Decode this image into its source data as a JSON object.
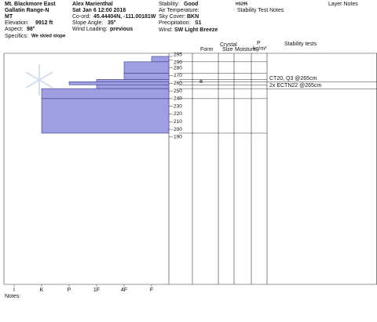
{
  "header": {
    "location": "Mt. Blackmore East",
    "range": "Gallatin Range-N",
    "state": "MT",
    "elevation_label": "Elevation:",
    "elevation": "9912 ft",
    "aspect_label": "Aspect:",
    "aspect": "98°",
    "specifics_label": "Specifics:",
    "specifics": "We skied slope",
    "observer": "Alex Marienthal",
    "datetime": "Sat Jan 6 12:00 2018",
    "coord_label": "Co-ord:",
    "coord": "45.44404N, -111.00181W",
    "slope_label": "Slope Angle:",
    "slope": "35°",
    "wind_loading_label": "Wind Loading:",
    "wind_loading": "previous",
    "stability_label": "Stability:",
    "stability": "Good",
    "air_temp_label": "Air Temperature:",
    "sky_label": "Sky Cover:",
    "sky": "BKN",
    "precip_label": "Precipitation:",
    "precip": "S1",
    "wind_label": "Wind:",
    "wind": "SW Light Breeze",
    "hs": "HS295",
    "test_notes_title": "Stability Test Notes",
    "layer_notes_title": "Layer Notes"
  },
  "columns": {
    "form": "Form",
    "crystal": "Crystal",
    "size": "Size",
    "moisture": "Moisture",
    "density_p": "P",
    "density_unit": "kg/m³",
    "stability_tests": "Stability tests"
  },
  "profile": {
    "ylim": [
      0,
      295
    ],
    "height_ticks": [
      295,
      290,
      280,
      270,
      260,
      250,
      240,
      230,
      220,
      210,
      200,
      190
    ],
    "hardness_labels": [
      "I",
      "K",
      "P",
      "1F",
      "4F",
      "F"
    ],
    "layers": [
      {
        "top": 295,
        "bottom": 288,
        "hardness": "F"
      },
      {
        "top": 288,
        "bottom": 273,
        "hardness": "4F"
      },
      {
        "top": 273,
        "bottom": 265,
        "hardness": "4F"
      },
      {
        "top": 265,
        "bottom": 262,
        "hardness": "1F"
      },
      {
        "top": 262,
        "bottom": 258,
        "hardness": "P"
      },
      {
        "top": 258,
        "bottom": 253,
        "hardness": "1F"
      },
      {
        "top": 253,
        "bottom": 240,
        "hardness": "K"
      },
      {
        "top": 240,
        "bottom": 195,
        "hardness": "K"
      }
    ],
    "grain_forms": [
      {
        "depth": 260,
        "symbol": "ɵ"
      }
    ]
  },
  "tests": [
    "CT20, Q3 @265cm",
    "2x ECTN22 @265cm"
  ],
  "notes_label": "Notes:"
}
